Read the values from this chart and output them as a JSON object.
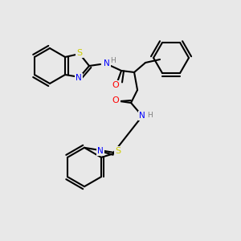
{
  "bg_color": "#e8e8e8",
  "bond_color": "#000000",
  "bond_width": 1.5,
  "dpi": 100,
  "figsize": [
    3.0,
    3.0
  ],
  "atom_colors": {
    "N": "#0000ff",
    "O": "#ff0000",
    "S": "#cccc00",
    "H": "#7f7f7f",
    "C": "#000000"
  },
  "font_size": 7.5
}
